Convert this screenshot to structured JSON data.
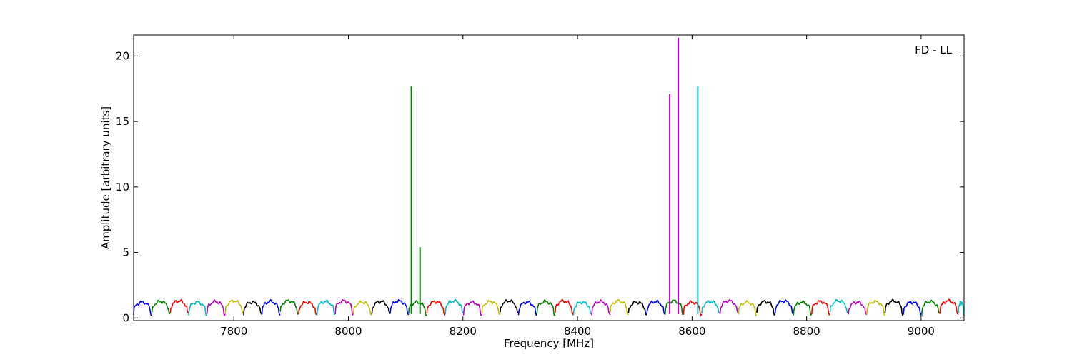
{
  "chart_data": {
    "type": "line",
    "title": "",
    "annotation": "FD - LL",
    "xlabel": "Frequency [MHz]",
    "ylabel": "Amplitude [arbitrary units]",
    "xlim": [
      7625,
      9075
    ],
    "ylim": [
      -0.2,
      21.6
    ],
    "x_ticks": [
      7800,
      8000,
      8200,
      8400,
      8600,
      8800,
      9000
    ],
    "y_ticks": [
      0,
      5,
      10,
      15,
      20
    ],
    "grid": false,
    "legend": "none",
    "series_colors": [
      "#0000ff",
      "#008000",
      "#ff0000",
      "#00bfbf",
      "#bf00bf",
      "#bfbf00",
      "#000000"
    ],
    "baseline": {
      "channel_width_mhz": 32,
      "start_mhz": 7625,
      "end_mhz": 9075,
      "min_amplitude": 0.25,
      "max_amplitude": 1.35
    },
    "spikes": [
      {
        "x": 8110,
        "y": 17.7,
        "color": "#008000"
      },
      {
        "x": 8125,
        "y": 5.4,
        "color": "#008000"
      },
      {
        "x": 8561,
        "y": 17.1,
        "color": "#bf00bf"
      },
      {
        "x": 8576,
        "y": 21.4,
        "color": "#bf00bf"
      },
      {
        "x": 8610,
        "y": 17.7,
        "color": "#00bfbf"
      }
    ]
  }
}
